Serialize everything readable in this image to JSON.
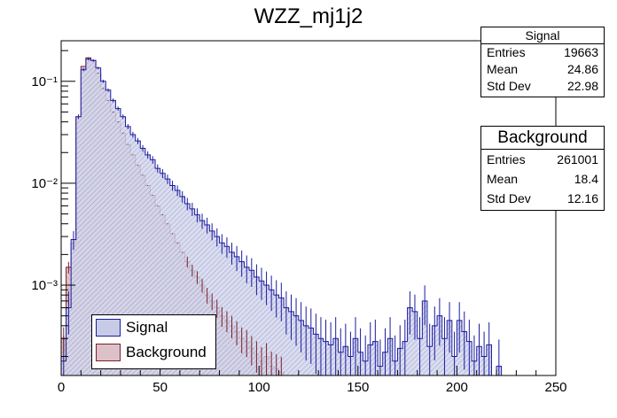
{
  "title": "WZZ_mj1j2",
  "colors": {
    "signal_line": "#1a1aa0",
    "signal_fill": "#c8cbe6",
    "background_line": "#7a1f2a",
    "background_fill": "#dcc2c8"
  },
  "stats": {
    "signal": {
      "name": "Signal",
      "entries_label": "Entries",
      "entries": "19663",
      "mean_label": "Mean",
      "mean": "24.86",
      "std_label": "Std Dev",
      "std": "22.98"
    },
    "background": {
      "name": "Background",
      "entries_label": "Entries",
      "entries": "261001",
      "mean_label": "Mean",
      "mean": "18.4",
      "std_label": "Std Dev",
      "std": "12.16"
    }
  },
  "legend": {
    "signal": "Signal",
    "background": "Background"
  },
  "chart_data": {
    "type": "histogram",
    "title": "WZZ_mj1j2",
    "xlabel": "",
    "ylabel": "",
    "xlim": [
      0,
      250
    ],
    "yscale": "log",
    "ylim": [
      0.00013,
      0.25
    ],
    "x_ticks": [
      0,
      50,
      100,
      150,
      200,
      250
    ],
    "y_ticks": [
      {
        "value": 0.001,
        "label": "10⁻³"
      },
      {
        "value": 0.01,
        "label": "10⁻²"
      },
      {
        "value": 0.1,
        "label": "10⁻¹"
      }
    ],
    "bin_width": 2.5,
    "series": [
      {
        "name": "Signal",
        "values": [
          0.00018,
          0.0006,
          0.0028,
          0.045,
          0.13,
          0.165,
          0.16,
          0.135,
          0.1,
          0.082,
          0.065,
          0.054,
          0.045,
          0.036,
          0.03,
          0.026,
          0.022,
          0.019,
          0.017,
          0.014,
          0.0125,
          0.011,
          0.0095,
          0.0085,
          0.0074,
          0.0063,
          0.0056,
          0.0049,
          0.0043,
          0.0039,
          0.0034,
          0.003,
          0.0026,
          0.0024,
          0.0021,
          0.0019,
          0.0017,
          0.0015,
          0.0014,
          0.0012,
          0.0011,
          0.001,
          0.0009,
          0.0008,
          0.00075,
          0.0006,
          0.00055,
          0.0005,
          0.00045,
          0.0004,
          0.00038,
          0.00033,
          0.0003,
          0.00028,
          0.00026,
          0.0003,
          0.00022,
          0.00025,
          0.0002,
          0.0003,
          0.00022,
          0.00018,
          0.00026,
          0.00028,
          0.00016,
          0.00022,
          0.0003,
          0.00018,
          0.00024,
          0.00028,
          0.0006,
          0.00055,
          0.0003,
          0.0007,
          0.00025,
          0.0004,
          0.0005,
          0.0003,
          0.00045,
          0.0002,
          0.00045,
          0.00035,
          0.00028,
          0.00018,
          0.00025,
          0.0002,
          0.00026,
          0.0001,
          0.00016,
          0.0001,
          0,
          0,
          0,
          0,
          0,
          0,
          0,
          0,
          0,
          0
        ]
      },
      {
        "name": "Background",
        "values": [
          0.0003,
          0.0015,
          0.0026,
          0.045,
          0.14,
          0.17,
          0.16,
          0.12,
          0.085,
          0.065,
          0.05,
          0.04,
          0.031,
          0.024,
          0.019,
          0.015,
          0.012,
          0.0095,
          0.0076,
          0.006,
          0.0049,
          0.004,
          0.0032,
          0.0026,
          0.0021,
          0.0017,
          0.0014,
          0.0012,
          0.001,
          0.0008,
          0.0007,
          0.0006,
          0.0005,
          0.00045,
          0.0004,
          0.00035,
          0.0003,
          0.00028,
          0.00024,
          0.00021,
          0.00018,
          0.0002,
          0.00016,
          0.00015,
          0.00014,
          0,
          0,
          0,
          0,
          0,
          0,
          0,
          0,
          0,
          0,
          0,
          0,
          0,
          0,
          0,
          0,
          0,
          0,
          0,
          0,
          0,
          0,
          0,
          0,
          0,
          0,
          0,
          0,
          0,
          0,
          0,
          0,
          0,
          0,
          0,
          0,
          0,
          0,
          0,
          0,
          0,
          0,
          0,
          0,
          0,
          0,
          0,
          0,
          0,
          0,
          0,
          0,
          0,
          0,
          0
        ]
      }
    ]
  }
}
